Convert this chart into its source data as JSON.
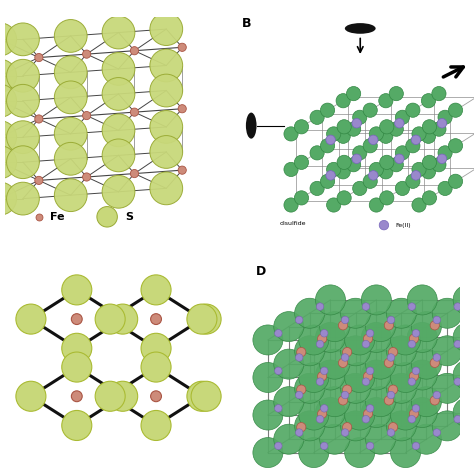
{
  "background": "#ffffff",
  "panel_label_B": "B",
  "panel_label_D": "D",
  "fe_color": "#cd8b7a",
  "s_color_A": "#c8d87a",
  "s_color_light": "#d4e07a",
  "s_color_B": "#55aa66",
  "fe_color_purple": "#9988cc",
  "line_color_A": "#444444",
  "line_color_B": "#888888",
  "line_color_D": "#444444",
  "legend_fe_label": "Fe",
  "legend_s_label": "S",
  "disulfide_label": "disulfide",
  "fe_label_B": "Fe(II)",
  "figsize": [
    4.74,
    4.74
  ],
  "dpi": 100
}
